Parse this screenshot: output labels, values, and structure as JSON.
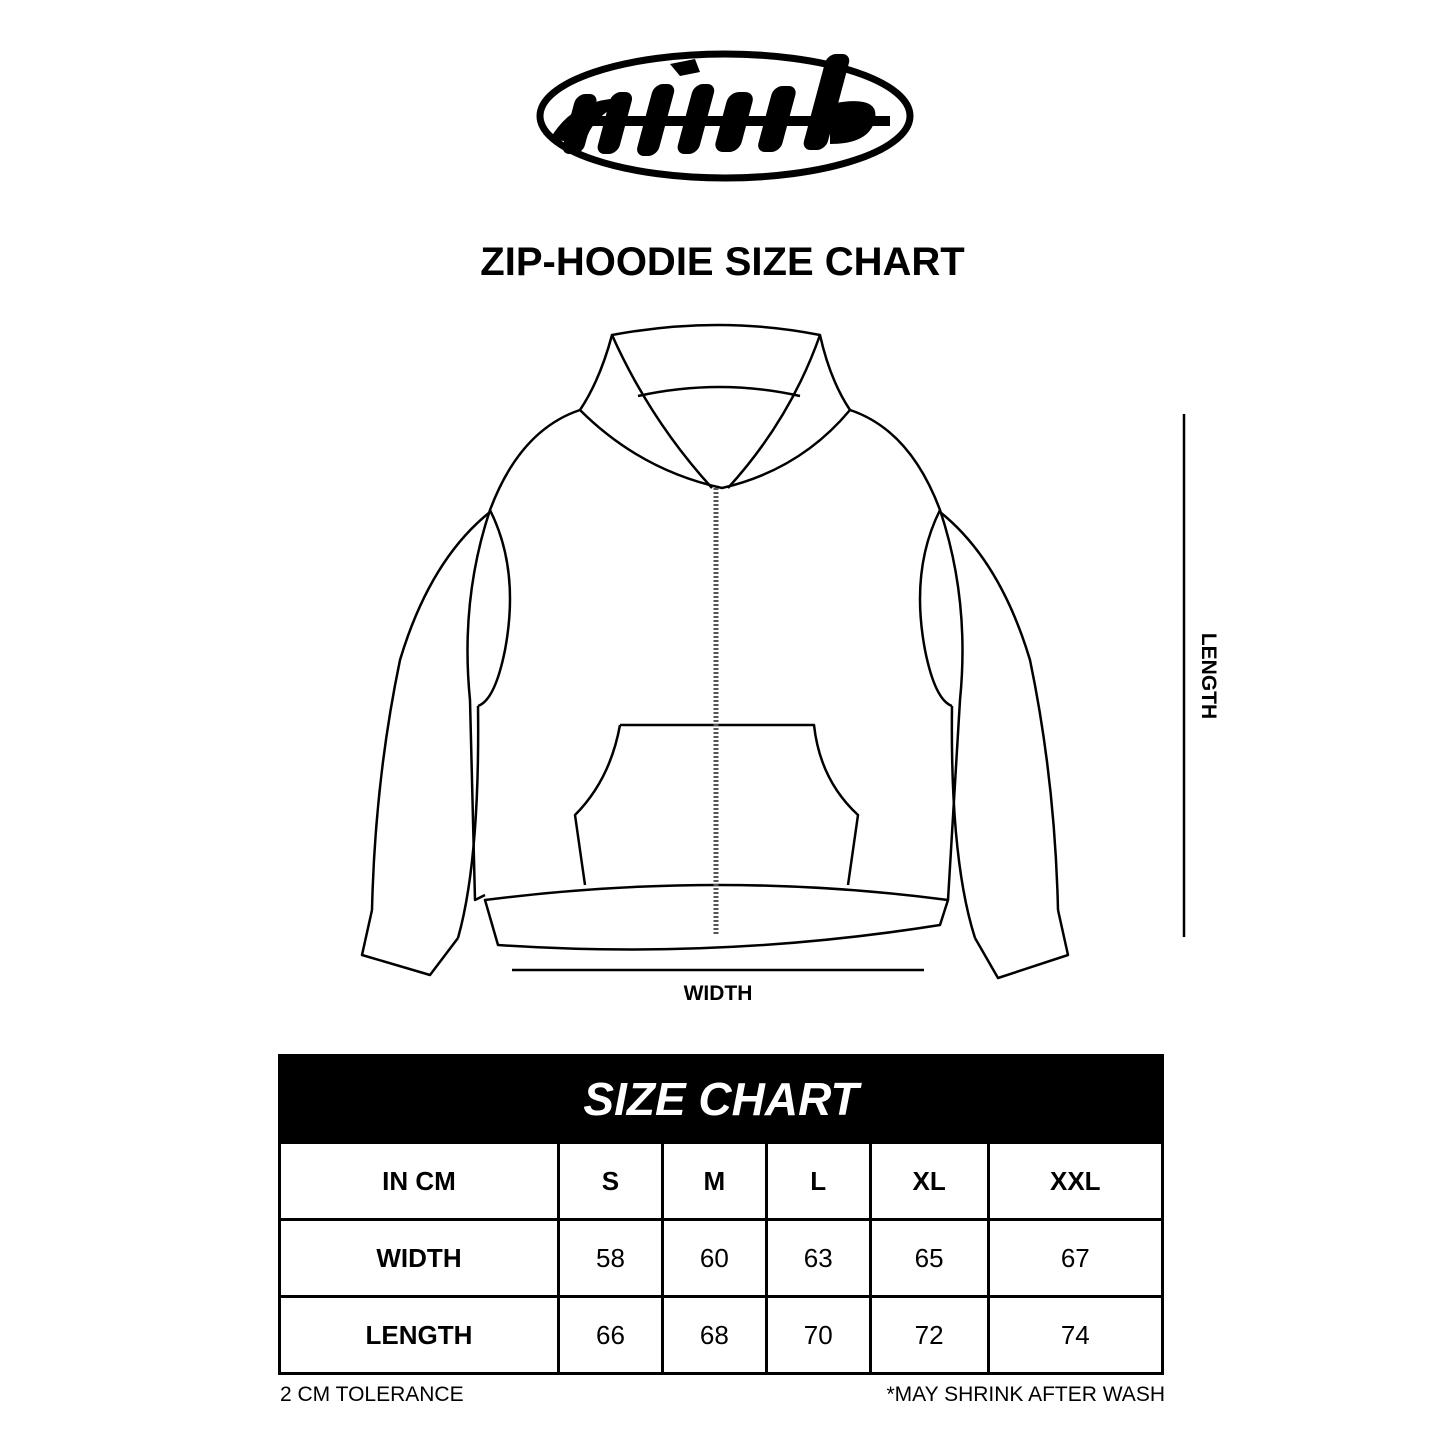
{
  "brand": {
    "logo_text": "mirads"
  },
  "title": "ZIP-HOODIE SIZE CHART",
  "diagram": {
    "width_label": "WIDTH",
    "length_label": "LENGTH"
  },
  "table": {
    "heading": "SIZE CHART",
    "unit_label": "IN CM",
    "sizes": [
      "S",
      "M",
      "L",
      "XL",
      "XXL"
    ],
    "rows": [
      {
        "label": "WIDTH",
        "values": [
          "58",
          "60",
          "63",
          "65",
          "67"
        ]
      },
      {
        "label": "LENGTH",
        "values": [
          "66",
          "68",
          "70",
          "72",
          "74"
        ]
      }
    ]
  },
  "notes": {
    "tolerance": "2 CM TOLERANCE",
    "shrink": "*MAY SHRINK AFTER WASH"
  }
}
